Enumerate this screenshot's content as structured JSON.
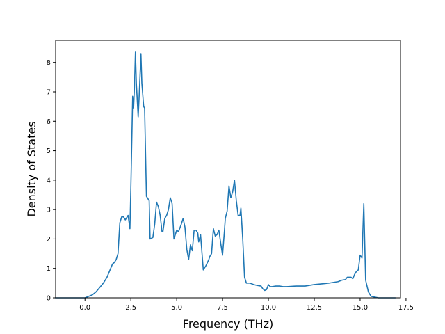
{
  "chart_data": {
    "type": "line",
    "title": "",
    "xlabel": "Frequency (THz)",
    "ylabel": "Density of States",
    "xlim": [
      -1.6,
      17.2
    ],
    "ylim": [
      0,
      8.75
    ],
    "xticks": [
      0.0,
      2.5,
      5.0,
      7.5,
      10.0,
      12.5,
      15.0,
      17.5
    ],
    "xtick_labels": [
      "0.0",
      "2.5",
      "5.0",
      "7.5",
      "10.0",
      "12.5",
      "15.0",
      "17.5"
    ],
    "yticks": [
      0,
      1,
      2,
      3,
      4,
      5,
      6,
      7,
      8
    ],
    "ytick_labels": [
      "0",
      "1",
      "2",
      "3",
      "4",
      "5",
      "6",
      "7",
      "8"
    ],
    "grid": false,
    "series": [
      {
        "color": "#1f77b4",
        "x": [
          -1.6,
          -0.5,
          0.0,
          0.2,
          0.4,
          0.6,
          0.8,
          1.0,
          1.2,
          1.4,
          1.5,
          1.6,
          1.7,
          1.8,
          1.9,
          2.0,
          2.1,
          2.2,
          2.35,
          2.45,
          2.5,
          2.6,
          2.65,
          2.7,
          2.75,
          2.8,
          2.9,
          2.95,
          3.05,
          3.1,
          3.2,
          3.25,
          3.35,
          3.4,
          3.5,
          3.55,
          3.7,
          3.8,
          3.9,
          4.0,
          4.1,
          4.2,
          4.25,
          4.35,
          4.45,
          4.55,
          4.65,
          4.75,
          4.85,
          4.9,
          5.0,
          5.1,
          5.25,
          5.35,
          5.45,
          5.55,
          5.65,
          5.75,
          5.85,
          5.95,
          6.05,
          6.15,
          6.2,
          6.3,
          6.45,
          6.6,
          6.75,
          6.8,
          6.9,
          7.0,
          7.1,
          7.2,
          7.3,
          7.4,
          7.5,
          7.6,
          7.65,
          7.75,
          7.85,
          7.95,
          8.05,
          8.15,
          8.25,
          8.35,
          8.45,
          8.5,
          8.6,
          8.7,
          8.8,
          9.0,
          9.2,
          9.4,
          9.6,
          9.7,
          9.8,
          9.9,
          10.0,
          10.1,
          10.2,
          10.4,
          10.6,
          10.8,
          11.0,
          11.5,
          12.0,
          12.5,
          13.0,
          13.3,
          13.5,
          13.8,
          14.0,
          14.2,
          14.3,
          14.5,
          14.6,
          14.7,
          14.8,
          14.9,
          15.0,
          15.1,
          15.2,
          15.3,
          15.45,
          15.6,
          16.0,
          16.5,
          16.9
        ],
        "y": [
          0,
          0,
          0,
          0.05,
          0.1,
          0.2,
          0.35,
          0.5,
          0.7,
          1.0,
          1.15,
          1.2,
          1.3,
          1.5,
          2.55,
          2.75,
          2.75,
          2.65,
          2.8,
          2.35,
          3.7,
          6.85,
          6.45,
          7.2,
          8.35,
          7.3,
          6.15,
          6.8,
          8.3,
          7.3,
          6.5,
          6.45,
          3.45,
          3.4,
          3.3,
          2.0,
          2.05,
          2.5,
          3.25,
          3.1,
          2.8,
          2.25,
          2.25,
          2.7,
          2.8,
          3.0,
          3.4,
          3.2,
          2.0,
          2.1,
          2.3,
          2.25,
          2.5,
          2.7,
          2.4,
          1.65,
          1.3,
          1.8,
          1.6,
          2.3,
          2.3,
          2.2,
          1.9,
          2.15,
          0.95,
          1.1,
          1.3,
          1.4,
          1.5,
          2.35,
          2.1,
          2.15,
          2.3,
          1.85,
          1.45,
          2.25,
          2.7,
          2.95,
          3.8,
          3.4,
          3.6,
          4.0,
          3.3,
          2.8,
          2.8,
          3.05,
          2.0,
          0.7,
          0.5,
          0.5,
          0.45,
          0.42,
          0.4,
          0.3,
          0.25,
          0.28,
          0.45,
          0.38,
          0.38,
          0.4,
          0.4,
          0.38,
          0.38,
          0.4,
          0.4,
          0.45,
          0.48,
          0.5,
          0.52,
          0.55,
          0.6,
          0.62,
          0.7,
          0.7,
          0.65,
          0.8,
          0.9,
          0.95,
          1.45,
          1.35,
          3.2,
          0.6,
          0.2,
          0.05,
          0,
          0,
          0
        ]
      }
    ]
  }
}
